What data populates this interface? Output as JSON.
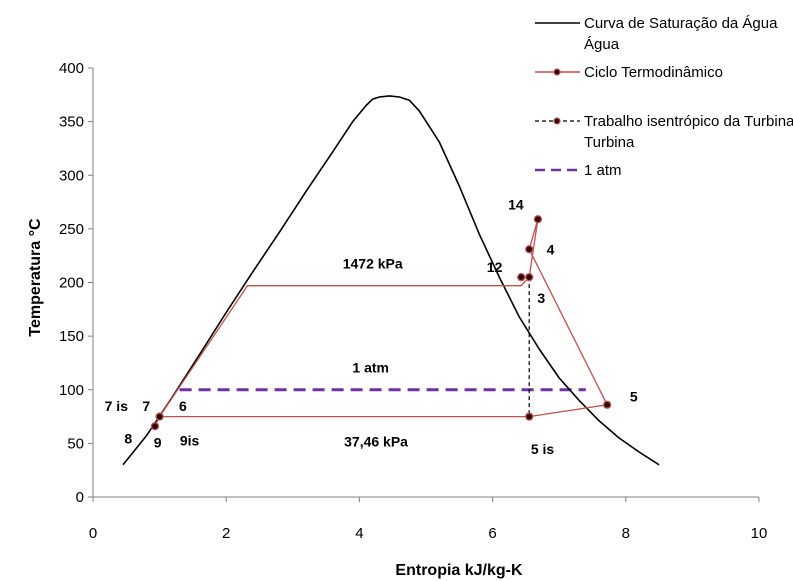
{
  "chart_data": {
    "type": "line",
    "xlabel": "Entropia kJ/kg-K",
    "ylabel": "Temperatura °C",
    "xlim": [
      0,
      10
    ],
    "ylim": [
      0,
      400
    ],
    "xticks": [
      "0",
      "2",
      "4",
      "6",
      "8",
      "10"
    ],
    "yticks": [
      "0",
      "50",
      "100",
      "150",
      "200",
      "250",
      "300",
      "350",
      "400"
    ],
    "grid": false,
    "legend_placement": "top-right",
    "colors": {
      "saturation": "#000000",
      "cycle": "#c0504d",
      "isentropic": "#000000",
      "atm": "#7030a0",
      "marker": "#8b0000"
    },
    "series": [
      {
        "name": "Curva de Saturação da Água",
        "x": [
          0.45,
          0.8,
          1.2,
          1.6,
          2.0,
          2.4,
          2.8,
          3.2,
          3.6,
          3.9,
          4.1,
          4.2,
          4.3,
          4.45,
          4.6,
          4.75,
          4.9,
          5.2,
          5.5,
          5.8,
          6.1,
          6.4,
          6.7,
          7.0,
          7.3,
          7.6,
          7.9,
          8.2,
          8.5
        ],
        "y": [
          30,
          57,
          94,
          133,
          172,
          210,
          247,
          285,
          322,
          350,
          365,
          371,
          373,
          374,
          373,
          370,
          360,
          331,
          290,
          245,
          205,
          168,
          138,
          111,
          90,
          71,
          55,
          42,
          30
        ]
      },
      {
        "name": "Ciclo Termodinâmico",
        "x": [
          0.93,
          1.0,
          2.32,
          6.43,
          6.55,
          6.68,
          6.55,
          7.72,
          6.55,
          1.0,
          0.93
        ],
        "y": [
          66,
          75,
          197,
          197,
          205,
          259,
          231,
          86,
          75,
          75,
          66
        ]
      },
      {
        "name": "Trabalho isentrópico da Turbina",
        "x": [
          6.55,
          6.55
        ],
        "y": [
          205,
          75
        ]
      },
      {
        "name": "1 atm",
        "x": [
          1.3,
          7.4
        ],
        "y": [
          100,
          100
        ]
      }
    ],
    "annotations": [
      {
        "text": "14",
        "x": 6.35,
        "y": 268
      },
      {
        "text": "4",
        "x": 6.87,
        "y": 226
      },
      {
        "text": "12",
        "x": 6.03,
        "y": 210
      },
      {
        "text": "3",
        "x": 6.73,
        "y": 181
      },
      {
        "text": "1472 kPa",
        "x": 4.2,
        "y": 213
      },
      {
        "text": "1 atm",
        "x": 4.17,
        "y": 116
      },
      {
        "text": "5",
        "x": 8.12,
        "y": 89
      },
      {
        "text": "7 is",
        "x": 0.35,
        "y": 80
      },
      {
        "text": "7",
        "x": 0.8,
        "y": 80
      },
      {
        "text": "6",
        "x": 1.35,
        "y": 80
      },
      {
        "text": "8",
        "x": 0.53,
        "y": 50
      },
      {
        "text": "9",
        "x": 0.97,
        "y": 46
      },
      {
        "text": "9is",
        "x": 1.45,
        "y": 48
      },
      {
        "text": "37,46 kPa",
        "x": 4.25,
        "y": 47
      },
      {
        "text": "5 is",
        "x": 6.75,
        "y": 40
      }
    ]
  }
}
